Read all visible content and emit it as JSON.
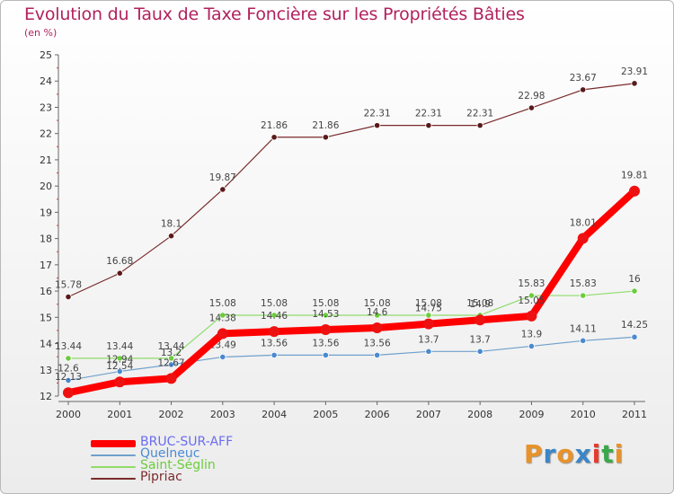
{
  "title": "Evolution du Taux de Taxe Foncière sur les Propriétés Bâties",
  "subtitle": "(en %)",
  "brand": {
    "letters": [
      "P",
      "r",
      "o",
      "x",
      "i",
      "t",
      "i"
    ],
    "colors": [
      "#e8922a",
      "#3a86c8",
      "#e8922a",
      "#3a86c8",
      "#e63a2e",
      "#3aa84a",
      "#e8922a"
    ]
  },
  "chart_data": {
    "type": "line",
    "title": "Evolution du Taux de Taxe Foncière sur les Propriétés Bâties",
    "ylabel": "(en %)",
    "xlabel": "",
    "ylim": [
      12,
      25
    ],
    "yticks": [
      "12",
      "13",
      "14",
      "15",
      "16",
      "17",
      "18",
      "19",
      "20",
      "21",
      "22",
      "23",
      "24",
      "25"
    ],
    "categories": [
      "2000",
      "2001",
      "2002",
      "2003",
      "2004",
      "2005",
      "2006",
      "2007",
      "2008",
      "2009",
      "2010",
      "2011"
    ],
    "grid": false,
    "legend": "bottom-left",
    "series": [
      {
        "name": "Pipriac",
        "color": "#7b2b2b",
        "dot": "#5a1a1a",
        "values": [
          15.78,
          16.68,
          18.1,
          19.87,
          21.86,
          21.86,
          22.31,
          22.31,
          22.31,
          22.98,
          23.67,
          23.91
        ],
        "labels": [
          "15.78",
          "16.68",
          "18.1",
          "19.87",
          "21.86",
          "21.86",
          "22.31",
          "22.31",
          "22.31",
          "22.98",
          "23.67",
          "23.91"
        ]
      },
      {
        "name": "Saint-Séglin",
        "color": "#8fdc6a",
        "dot": "#6ccc3c",
        "values": [
          13.44,
          13.44,
          13.44,
          15.08,
          15.08,
          15.08,
          15.08,
          15.08,
          15.08,
          15.83,
          15.83,
          16
        ],
        "labels": [
          "13.44",
          "13.44",
          "13.44",
          "15.08",
          "15.08",
          "15.08",
          "15.08",
          "15.08",
          "15.08",
          "15.83",
          "15.83",
          "16"
        ]
      },
      {
        "name": "Quelneuc",
        "color": "#6fa0cc",
        "dot": "#4b8ad0",
        "values": [
          12.6,
          12.94,
          13.2,
          13.49,
          13.56,
          13.56,
          13.56,
          13.7,
          13.7,
          13.9,
          14.11,
          14.25
        ],
        "labels": [
          "12.6",
          "12.94",
          "13.2",
          "13.49",
          "13.56",
          "13.56",
          "13.56",
          "13.7",
          "13.7",
          "13.9",
          "14.11",
          "14.25"
        ]
      },
      {
        "name": "BRUC-SUR-AFF",
        "color": "#ff0000",
        "dot": "#ee1111",
        "values": [
          12.13,
          12.54,
          12.67,
          14.38,
          14.46,
          14.53,
          14.6,
          14.75,
          14.9,
          15.05,
          18.01,
          19.81
        ],
        "labels": [
          "12.13",
          "12.54",
          "12.67",
          "14.38",
          "14.46",
          "14.53",
          "14.6",
          "14.75",
          "14.9",
          "15.05",
          "18.01",
          "19.81"
        ]
      }
    ]
  },
  "legend_order": [
    "BRUC-SUR-AFF",
    "Quelneuc",
    "Saint-Séglin",
    "Pipriac"
  ]
}
